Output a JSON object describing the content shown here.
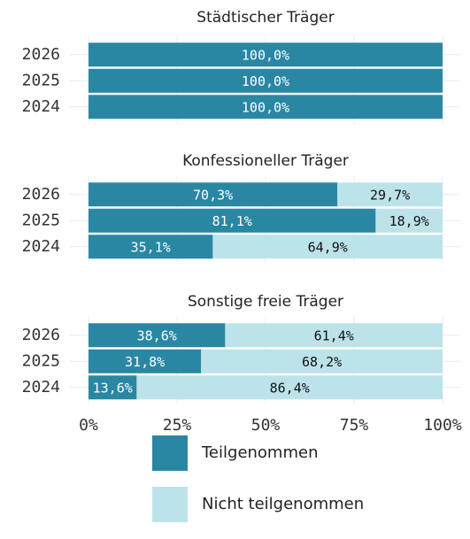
{
  "chart_data": {
    "type": "bar",
    "categories": [
      "2026",
      "2025",
      "2024"
    ],
    "xlim": [
      0,
      100
    ],
    "xticks": [
      {
        "value": 0,
        "label": "0%"
      },
      {
        "value": 25,
        "label": "25%"
      },
      {
        "value": 50,
        "label": "50%"
      },
      {
        "value": 75,
        "label": "75%"
      },
      {
        "value": 100,
        "label": "100%"
      }
    ],
    "grid": true,
    "series": [
      {
        "name": "Teilgenommen",
        "color": "#2a87a3"
      },
      {
        "name": "Nicht teilgenommen",
        "color": "#bde3ea"
      }
    ],
    "panels": [
      {
        "title": "Städtischer Träger",
        "series": [
          {
            "values": [
              100,
              100,
              100
            ],
            "value_labels": [
              "100,0%",
              "100,0%",
              "100,0%"
            ]
          },
          {
            "values": [
              0,
              0,
              0
            ],
            "value_labels": [
              null,
              null,
              null
            ]
          }
        ]
      },
      {
        "title": "Konfessioneller Träger",
        "series": [
          {
            "values": [
              70.3,
              81.1,
              35.1
            ],
            "value_labels": [
              "70,3%",
              "81,1%",
              "35,1%"
            ]
          },
          {
            "values": [
              29.7,
              18.9,
              64.9
            ],
            "value_labels": [
              "29,7%",
              "18,9%",
              "64,9%"
            ]
          }
        ]
      },
      {
        "title": "Sonstige freie Träger",
        "series": [
          {
            "values": [
              38.6,
              31.8,
              13.6
            ],
            "value_labels": [
              "38,6%",
              "31,8%",
              "13,6%"
            ]
          },
          {
            "values": [
              61.4,
              68.2,
              86.4
            ],
            "value_labels": [
              "61,4%",
              "68,2%",
              "86,4%"
            ]
          }
        ]
      }
    ]
  }
}
